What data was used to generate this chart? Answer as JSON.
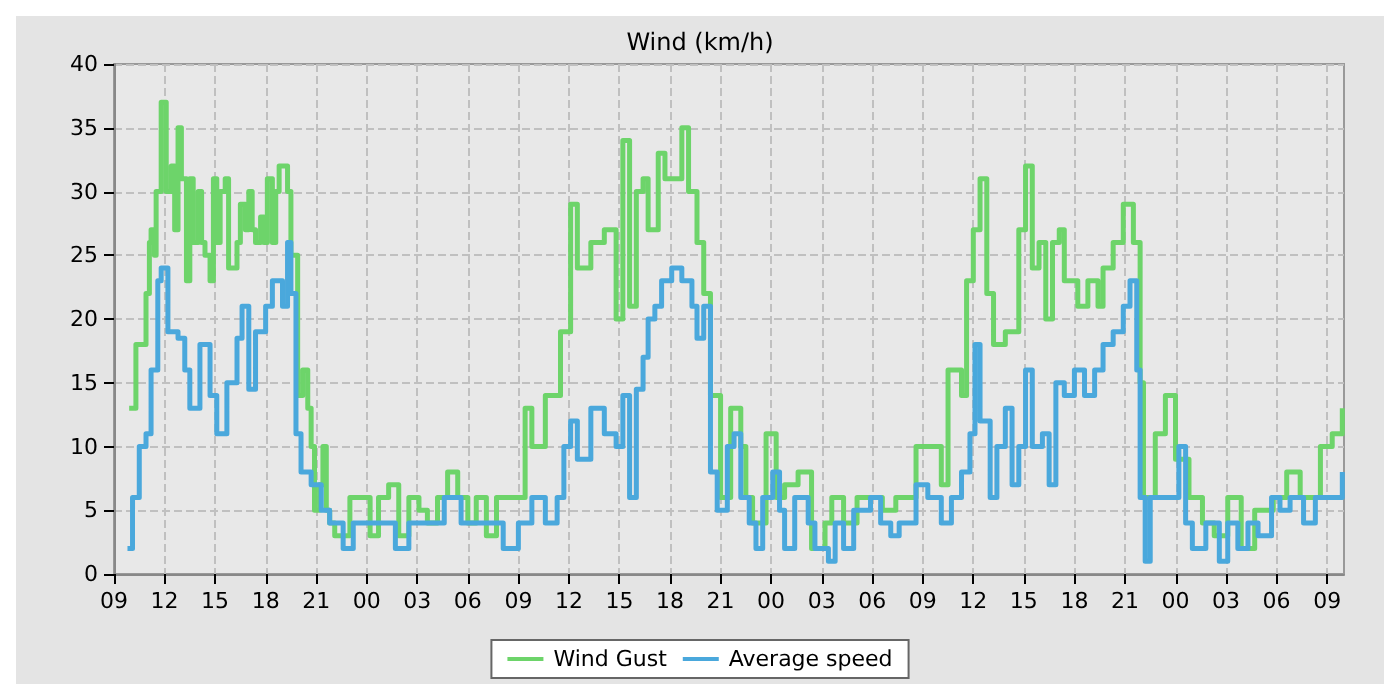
{
  "chart_data": {
    "type": "step",
    "title": "Wind (km/h)",
    "xlim": [
      "2000-01-01T09:00",
      "2000-01-04T10:00"
    ],
    "xticks": [
      {
        "value": "2000-01-01T09:00",
        "label": "09"
      },
      {
        "value": "2000-01-01T12:00",
        "label": "12"
      },
      {
        "value": "2000-01-01T15:00",
        "label": "15"
      },
      {
        "value": "2000-01-01T18:00",
        "label": "18"
      },
      {
        "value": "2000-01-01T21:00",
        "label": "21"
      },
      {
        "value": "2000-01-02T00:00",
        "label": "00"
      },
      {
        "value": "2000-01-02T03:00",
        "label": "03"
      },
      {
        "value": "2000-01-02T06:00",
        "label": "06"
      },
      {
        "value": "2000-01-02T09:00",
        "label": "09"
      },
      {
        "value": "2000-01-02T12:00",
        "label": "12"
      },
      {
        "value": "2000-01-02T15:00",
        "label": "15"
      },
      {
        "value": "2000-01-02T18:00",
        "label": "18"
      },
      {
        "value": "2000-01-02T21:00",
        "label": "21"
      },
      {
        "value": "2000-01-03T00:00",
        "label": "00"
      },
      {
        "value": "2000-01-03T03:00",
        "label": "03"
      },
      {
        "value": "2000-01-03T06:00",
        "label": "06"
      },
      {
        "value": "2000-01-03T09:00",
        "label": "09"
      },
      {
        "value": "2000-01-03T12:00",
        "label": "12"
      },
      {
        "value": "2000-01-03T15:00",
        "label": "15"
      },
      {
        "value": "2000-01-03T18:00",
        "label": "18"
      },
      {
        "value": "2000-01-03T21:00",
        "label": "21"
      },
      {
        "value": "2000-01-04T00:00",
        "label": "00"
      },
      {
        "value": "2000-01-04T03:00",
        "label": "03"
      },
      {
        "value": "2000-01-04T06:00",
        "label": "06"
      },
      {
        "value": "2000-01-04T09:00",
        "label": "09"
      }
    ],
    "ylim": [
      0,
      40
    ],
    "yticks": [
      0,
      5,
      10,
      15,
      20,
      25,
      30,
      35,
      40
    ],
    "grid": true,
    "legend": "bottom",
    "line_style": "solid",
    "series": [
      {
        "name": "Wind Gust",
        "color": "#6dd46a",
        "x": [
          "2000-01-01T09:54",
          "2000-01-01T10:18",
          "2000-01-01T10:36",
          "2000-01-01T10:54",
          "2000-01-01T11:06",
          "2000-01-01T11:12",
          "2000-01-01T11:24",
          "2000-01-01T11:30",
          "2000-01-01T11:48",
          "2000-01-01T12:00",
          "2000-01-01T12:06",
          "2000-01-01T12:24",
          "2000-01-01T12:36",
          "2000-01-01T12:48",
          "2000-01-01T13:00",
          "2000-01-01T13:18",
          "2000-01-01T13:30",
          "2000-01-01T13:42",
          "2000-01-01T14:00",
          "2000-01-01T14:12",
          "2000-01-01T14:24",
          "2000-01-01T14:42",
          "2000-01-01T14:54",
          "2000-01-01T15:06",
          "2000-01-01T15:18",
          "2000-01-01T15:36",
          "2000-01-01T15:48",
          "2000-01-01T16:06",
          "2000-01-01T16:18",
          "2000-01-01T16:30",
          "2000-01-01T16:48",
          "2000-01-01T17:00",
          "2000-01-01T17:12",
          "2000-01-01T17:24",
          "2000-01-01T17:42",
          "2000-01-01T17:54",
          "2000-01-01T18:06",
          "2000-01-01T18:24",
          "2000-01-01T18:36",
          "2000-01-01T18:48",
          "2000-01-01T19:06",
          "2000-01-01T19:18",
          "2000-01-01T19:30",
          "2000-01-01T19:48",
          "2000-01-01T19:54",
          "2000-01-01T20:12",
          "2000-01-01T20:30",
          "2000-01-01T20:42",
          "2000-01-01T20:54",
          "2000-01-01T21:12",
          "2000-01-01T21:24",
          "2000-01-01T21:36",
          "2000-01-01T21:48",
          "2000-01-01T22:06",
          "2000-01-01T22:24",
          "2000-01-01T23:00",
          "2000-01-01T23:36",
          "2000-01-02T00:12",
          "2000-01-02T00:42",
          "2000-01-02T01:18",
          "2000-01-02T01:54",
          "2000-01-02T02:30",
          "2000-01-02T03:06",
          "2000-01-02T03:36",
          "2000-01-02T04:12",
          "2000-01-02T04:48",
          "2000-01-02T05:24",
          "2000-01-02T06:00",
          "2000-01-02T06:30",
          "2000-01-02T07:06",
          "2000-01-02T07:42",
          "2000-01-02T08:18",
          "2000-01-02T09:24",
          "2000-01-02T09:48",
          "2000-01-02T10:36",
          "2000-01-02T11:30",
          "2000-01-02T12:06",
          "2000-01-02T12:30",
          "2000-01-02T13:18",
          "2000-01-02T14:06",
          "2000-01-02T14:48",
          "2000-01-02T15:12",
          "2000-01-02T15:36",
          "2000-01-02T16:00",
          "2000-01-02T16:24",
          "2000-01-02T16:42",
          "2000-01-02T17:18",
          "2000-01-02T17:42",
          "2000-01-02T18:42",
          "2000-01-02T19:06",
          "2000-01-02T19:36",
          "2000-01-02T20:00",
          "2000-01-02T20:24",
          "2000-01-02T21:00",
          "2000-01-02T21:36",
          "2000-01-02T22:12",
          "2000-01-02T22:30",
          "2000-01-02T22:54",
          "2000-01-02T23:42",
          "2000-01-03T00:18",
          "2000-01-03T00:48",
          "2000-01-03T01:36",
          "2000-01-03T02:24",
          "2000-01-03T03:12",
          "2000-01-03T03:36",
          "2000-01-03T04:18",
          "2000-01-03T05:06",
          "2000-01-03T06:36",
          "2000-01-03T07:24",
          "2000-01-03T08:36",
          "2000-01-03T09:18",
          "2000-01-03T10:06",
          "2000-01-03T10:30",
          "2000-01-03T11:18",
          "2000-01-03T11:36",
          "2000-01-03T12:00",
          "2000-01-03T12:24",
          "2000-01-03T12:48",
          "2000-01-03T13:12",
          "2000-01-03T13:54",
          "2000-01-03T14:42",
          "2000-01-03T15:06",
          "2000-01-03T15:30",
          "2000-01-03T15:54",
          "2000-01-03T16:18",
          "2000-01-03T16:42",
          "2000-01-03T17:06",
          "2000-01-03T17:24",
          "2000-01-03T18:12",
          "2000-01-03T18:48",
          "2000-01-03T19:24",
          "2000-01-03T19:42",
          "2000-01-03T20:18",
          "2000-01-03T20:54",
          "2000-01-03T21:30",
          "2000-01-03T21:54",
          "2000-01-03T22:06",
          "2000-01-03T22:48",
          "2000-01-03T23:24",
          "2000-01-04T00:00",
          "2000-01-04T00:48",
          "2000-01-04T01:36",
          "2000-01-04T02:18",
          "2000-01-04T03:06",
          "2000-01-04T03:54",
          "2000-01-04T04:42",
          "2000-01-04T05:48",
          "2000-01-04T06:36",
          "2000-01-04T07:24",
          "2000-01-04T08:36",
          "2000-01-04T09:18",
          "2000-01-04T09:54"
        ],
        "values": [
          13,
          18,
          18,
          22,
          26,
          27,
          25,
          30,
          37,
          37,
          30,
          32,
          27,
          35,
          31,
          23,
          31,
          26,
          30,
          26,
          25,
          23,
          31,
          26,
          30,
          31,
          24,
          24,
          26,
          29,
          27,
          30,
          27,
          26,
          28,
          26,
          31,
          26,
          30,
          32,
          32,
          30,
          25,
          25,
          14,
          16,
          13,
          10,
          5,
          7,
          10,
          5,
          4,
          3,
          3,
          6,
          6,
          3,
          6,
          7,
          3,
          6,
          5,
          4,
          6,
          8,
          6,
          4,
          6,
          3,
          6,
          6,
          13,
          10,
          14,
          19,
          29,
          24,
          26,
          27,
          20,
          34,
          21,
          30,
          31,
          27,
          33,
          31,
          35,
          30,
          26,
          22,
          14,
          6,
          13,
          10,
          6,
          4,
          11,
          6,
          7,
          8,
          2,
          4,
          6,
          4,
          6,
          5,
          6,
          10,
          10,
          7,
          16,
          14,
          23,
          27,
          31,
          22,
          18,
          19,
          27,
          32,
          24,
          26,
          20,
          26,
          27,
          23,
          21,
          23,
          21,
          24,
          26,
          29,
          26,
          15,
          6,
          11,
          14,
          9,
          6,
          4,
          3,
          6,
          2,
          5,
          6,
          8,
          6,
          10,
          11,
          13
        ]
      },
      {
        "name": "Average speed",
        "color": "#4aa8dc",
        "x": [
          "2000-01-01T09:48",
          "2000-01-01T10:06",
          "2000-01-01T10:30",
          "2000-01-01T10:54",
          "2000-01-01T11:12",
          "2000-01-01T11:36",
          "2000-01-01T11:48",
          "2000-01-01T12:12",
          "2000-01-01T12:48",
          "2000-01-01T13:12",
          "2000-01-01T13:30",
          "2000-01-01T14:06",
          "2000-01-01T14:42",
          "2000-01-01T15:06",
          "2000-01-01T15:42",
          "2000-01-01T16:18",
          "2000-01-01T16:36",
          "2000-01-01T17:00",
          "2000-01-01T17:24",
          "2000-01-01T18:00",
          "2000-01-01T18:24",
          "2000-01-01T19:00",
          "2000-01-01T19:18",
          "2000-01-01T19:30",
          "2000-01-01T19:48",
          "2000-01-01T20:06",
          "2000-01-01T20:42",
          "2000-01-01T21:18",
          "2000-01-01T21:48",
          "2000-01-01T22:36",
          "2000-01-01T23:12",
          "2000-01-02T00:30",
          "2000-01-02T01:42",
          "2000-01-02T02:30",
          "2000-01-02T03:18",
          "2000-01-02T04:36",
          "2000-01-02T05:36",
          "2000-01-02T07:06",
          "2000-01-02T08:06",
          "2000-01-02T09:00",
          "2000-01-02T09:24",
          "2000-01-02T09:48",
          "2000-01-02T10:36",
          "2000-01-02T11:18",
          "2000-01-02T11:42",
          "2000-01-02T12:06",
          "2000-01-02T12:30",
          "2000-01-02T13:18",
          "2000-01-02T14:06",
          "2000-01-02T14:48",
          "2000-01-02T15:12",
          "2000-01-02T15:36",
          "2000-01-02T16:00",
          "2000-01-02T16:24",
          "2000-01-02T16:42",
          "2000-01-02T17:06",
          "2000-01-02T17:30",
          "2000-01-02T18:06",
          "2000-01-02T18:42",
          "2000-01-02T19:18",
          "2000-01-02T19:36",
          "2000-01-02T20:00",
          "2000-01-02T20:24",
          "2000-01-02T20:48",
          "2000-01-02T21:24",
          "2000-01-02T21:48",
          "2000-01-02T22:12",
          "2000-01-02T22:42",
          "2000-01-02T23:06",
          "2000-01-02T23:30",
          "2000-01-03T00:06",
          "2000-01-03T00:30",
          "2000-01-03T00:48",
          "2000-01-03T01:24",
          "2000-01-03T02:12",
          "2000-01-03T02:36",
          "2000-01-03T03:24",
          "2000-01-03T03:48",
          "2000-01-03T04:18",
          "2000-01-03T04:54",
          "2000-01-03T05:54",
          "2000-01-03T06:30",
          "2000-01-03T07:06",
          "2000-01-03T07:36",
          "2000-01-03T08:36",
          "2000-01-03T09:18",
          "2000-01-03T10:06",
          "2000-01-03T10:42",
          "2000-01-03T11:18",
          "2000-01-03T11:48",
          "2000-01-03T12:06",
          "2000-01-03T12:24",
          "2000-01-03T13:00",
          "2000-01-03T13:24",
          "2000-01-03T13:54",
          "2000-01-03T14:18",
          "2000-01-03T14:42",
          "2000-01-03T15:06",
          "2000-01-03T15:30",
          "2000-01-03T16:06",
          "2000-01-03T16:30",
          "2000-01-03T16:54",
          "2000-01-03T17:24",
          "2000-01-03T18:00",
          "2000-01-03T18:36",
          "2000-01-03T19:12",
          "2000-01-03T19:42",
          "2000-01-03T20:18",
          "2000-01-03T20:54",
          "2000-01-03T21:18",
          "2000-01-03T21:42",
          "2000-01-03T21:54",
          "2000-01-03T22:12",
          "2000-01-03T22:30",
          "2000-01-03T23:06",
          "2000-01-03T23:36",
          "2000-01-04T00:12",
          "2000-01-04T00:36",
          "2000-01-04T01:00",
          "2000-01-04T01:48",
          "2000-01-04T02:36",
          "2000-01-04T03:06",
          "2000-01-04T03:42",
          "2000-01-04T04:18",
          "2000-01-04T04:54",
          "2000-01-04T05:42",
          "2000-01-04T06:12",
          "2000-01-04T06:48",
          "2000-01-04T07:36",
          "2000-01-04T08:18",
          "2000-01-04T09:06",
          "2000-01-04T09:36",
          "2000-01-04T09:54"
        ],
        "values": [
          2,
          6,
          10,
          11,
          16,
          23,
          24,
          19,
          18.5,
          16,
          13,
          18,
          14,
          11,
          15,
          18.5,
          21,
          14.5,
          19,
          21,
          23,
          21,
          26,
          22,
          11,
          8,
          7,
          5,
          4,
          2,
          4,
          4,
          2,
          4,
          4,
          6,
          4,
          4,
          2,
          4,
          4,
          6,
          4,
          6,
          10,
          12,
          9,
          13,
          11,
          10,
          14,
          6,
          14.5,
          17,
          20,
          21,
          23,
          24,
          23,
          21,
          18.5,
          21,
          8,
          5,
          10,
          11,
          6,
          4,
          2,
          6,
          8,
          5,
          2,
          6,
          4,
          2,
          1,
          4,
          2,
          5,
          6,
          4,
          3,
          4,
          7,
          6,
          4,
          6,
          8,
          11,
          18,
          12,
          6,
          10,
          13,
          7,
          10,
          16,
          10,
          11,
          7,
          15,
          14,
          16,
          14,
          16,
          18,
          19,
          21,
          23,
          16,
          6,
          1,
          6,
          6,
          6,
          10,
          4,
          2,
          4,
          1,
          4,
          2,
          4,
          3,
          6,
          5,
          6,
          4,
          6,
          6,
          6,
          8
        ]
      }
    ]
  }
}
